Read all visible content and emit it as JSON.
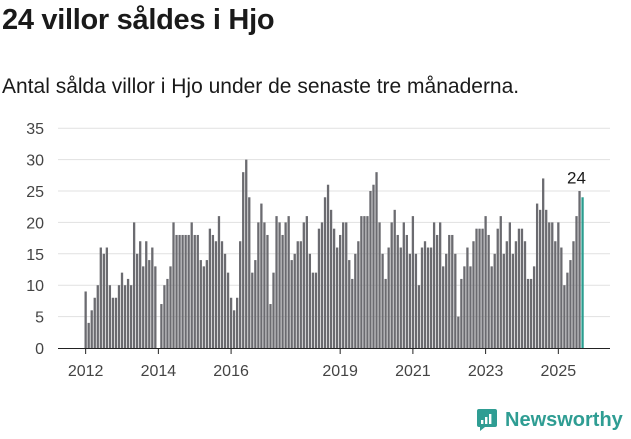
{
  "header": {
    "title": "24 villor såldes i Hjo",
    "subtitle": "Antal sålda villor i Hjo under de senaste tre månaderna."
  },
  "brand": {
    "name": "Newsworthy",
    "icon": "chart-bubble-icon",
    "color": "#2f9d93"
  },
  "colors": {
    "bar": "#6b6b70",
    "highlight": "#2a9d8f",
    "grid": "#e1e1e1",
    "axis_text": "#444444"
  },
  "chart_data": {
    "type": "bar",
    "title": "24 villor såldes i Hjo",
    "xlabel": "",
    "ylabel": "",
    "ylim": [
      0,
      35
    ],
    "yticks": [
      0,
      5,
      10,
      15,
      20,
      25,
      30,
      35
    ],
    "xtick_labels": [
      "2012",
      "2014",
      "2016",
      "2019",
      "2021",
      "2023",
      "2025"
    ],
    "xtick_positions": [
      "2012-01",
      "2014-01",
      "2016-01",
      "2019-01",
      "2021-01",
      "2023-01",
      "2025-01"
    ],
    "grid": true,
    "start": "2012-01",
    "annotation": {
      "text": "24",
      "month": "2025-07",
      "value": 24
    },
    "values": [
      9,
      4,
      6,
      8,
      10,
      16,
      15,
      16,
      10,
      8,
      8,
      10,
      12,
      10,
      11,
      10,
      20,
      15,
      17,
      13,
      17,
      14,
      16,
      13,
      0,
      7,
      10,
      11,
      13,
      20,
      18,
      18,
      18,
      18,
      18,
      20,
      18,
      18,
      14,
      13,
      14,
      19,
      18,
      17,
      21,
      17,
      15,
      12,
      8,
      6,
      8,
      17,
      28,
      30,
      24,
      12,
      14,
      20,
      23,
      20,
      18,
      7,
      12,
      21,
      20,
      18,
      20,
      21,
      14,
      15,
      17,
      17,
      20,
      21,
      15,
      12,
      12,
      19,
      20,
      24,
      26,
      22,
      19,
      16,
      18,
      20,
      20,
      14,
      11,
      15,
      17,
      21,
      21,
      21,
      25,
      26,
      28,
      20,
      15,
      11,
      16,
      20,
      22,
      18,
      16,
      20,
      18,
      15,
      21,
      15,
      10,
      16,
      17,
      16,
      16,
      20,
      18,
      20,
      13,
      15,
      18,
      18,
      15,
      5,
      11,
      13,
      16,
      13,
      17,
      19,
      19,
      19,
      21,
      18,
      13,
      15,
      19,
      21,
      15,
      17,
      20,
      15,
      17,
      19,
      19,
      17,
      11,
      11,
      13,
      23,
      22,
      27,
      22,
      20,
      20,
      17,
      20,
      16,
      10,
      12,
      14,
      17,
      21,
      25,
      24
    ],
    "highlight_last": true
  }
}
